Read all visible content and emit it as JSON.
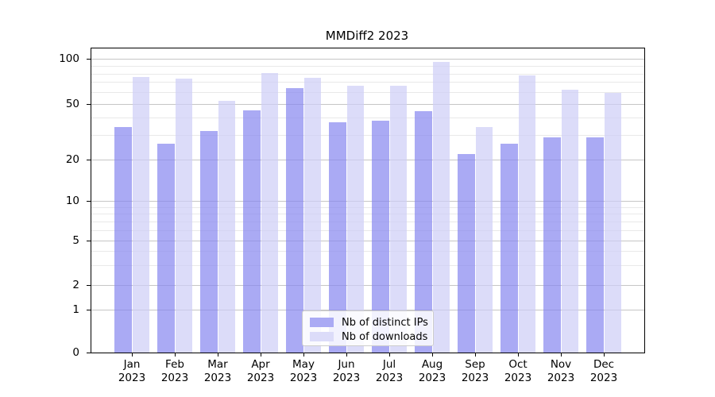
{
  "title": "MMDiff2 2023",
  "legend": {
    "items": [
      {
        "label": "Nb of distinct IPs",
        "color_key": "distinct_ips"
      },
      {
        "label": "Nb of downloads",
        "color_key": "downloads"
      }
    ]
  },
  "y_axis": {
    "tick_labels": [
      "100",
      "50",
      "20",
      "10",
      "5",
      "2",
      "1",
      "0"
    ]
  },
  "x_axis": {
    "year": "2023"
  },
  "chart_data": {
    "type": "bar",
    "title": "MMDiff2 2023",
    "categories": [
      "Jan 2023",
      "Feb 2023",
      "Mar 2023",
      "Apr 2023",
      "May 2023",
      "Jun 2023",
      "Jul 2023",
      "Aug 2023",
      "Sep 2023",
      "Oct 2023",
      "Nov 2023",
      "Dec 2023"
    ],
    "months": [
      "Jan",
      "Feb",
      "Mar",
      "Apr",
      "May",
      "Jun",
      "Jul",
      "Aug",
      "Sep",
      "Oct",
      "Nov",
      "Dec"
    ],
    "series": [
      {
        "name": "Nb of distinct IPs",
        "color_key": "distinct_ips",
        "values": [
          34,
          26,
          32,
          45,
          64,
          37,
          38,
          44,
          22,
          26,
          29,
          29
        ]
      },
      {
        "name": "Nb of downloads",
        "color_key": "downloads",
        "values": [
          76,
          74,
          52,
          81,
          75,
          66,
          66,
          96,
          34,
          78,
          62,
          59
        ]
      }
    ],
    "yscale": "symlog",
    "y_ticks": [
      0,
      1,
      2,
      5,
      10,
      20,
      50,
      100
    ],
    "y_minor_ticks": [
      3,
      4,
      6,
      7,
      8,
      9,
      30,
      40,
      60,
      70,
      80,
      90
    ],
    "ylim": [
      0,
      118
    ],
    "grid": true,
    "legend_position": "lower center",
    "colors": {
      "distinct_ips": "#aaaaf4",
      "downloads": "#dcdcf9",
      "distinct_ips_rgba": "rgba(134,134,239,0.7)",
      "downloads_rgba": "rgba(205,205,246,0.7)"
    }
  }
}
